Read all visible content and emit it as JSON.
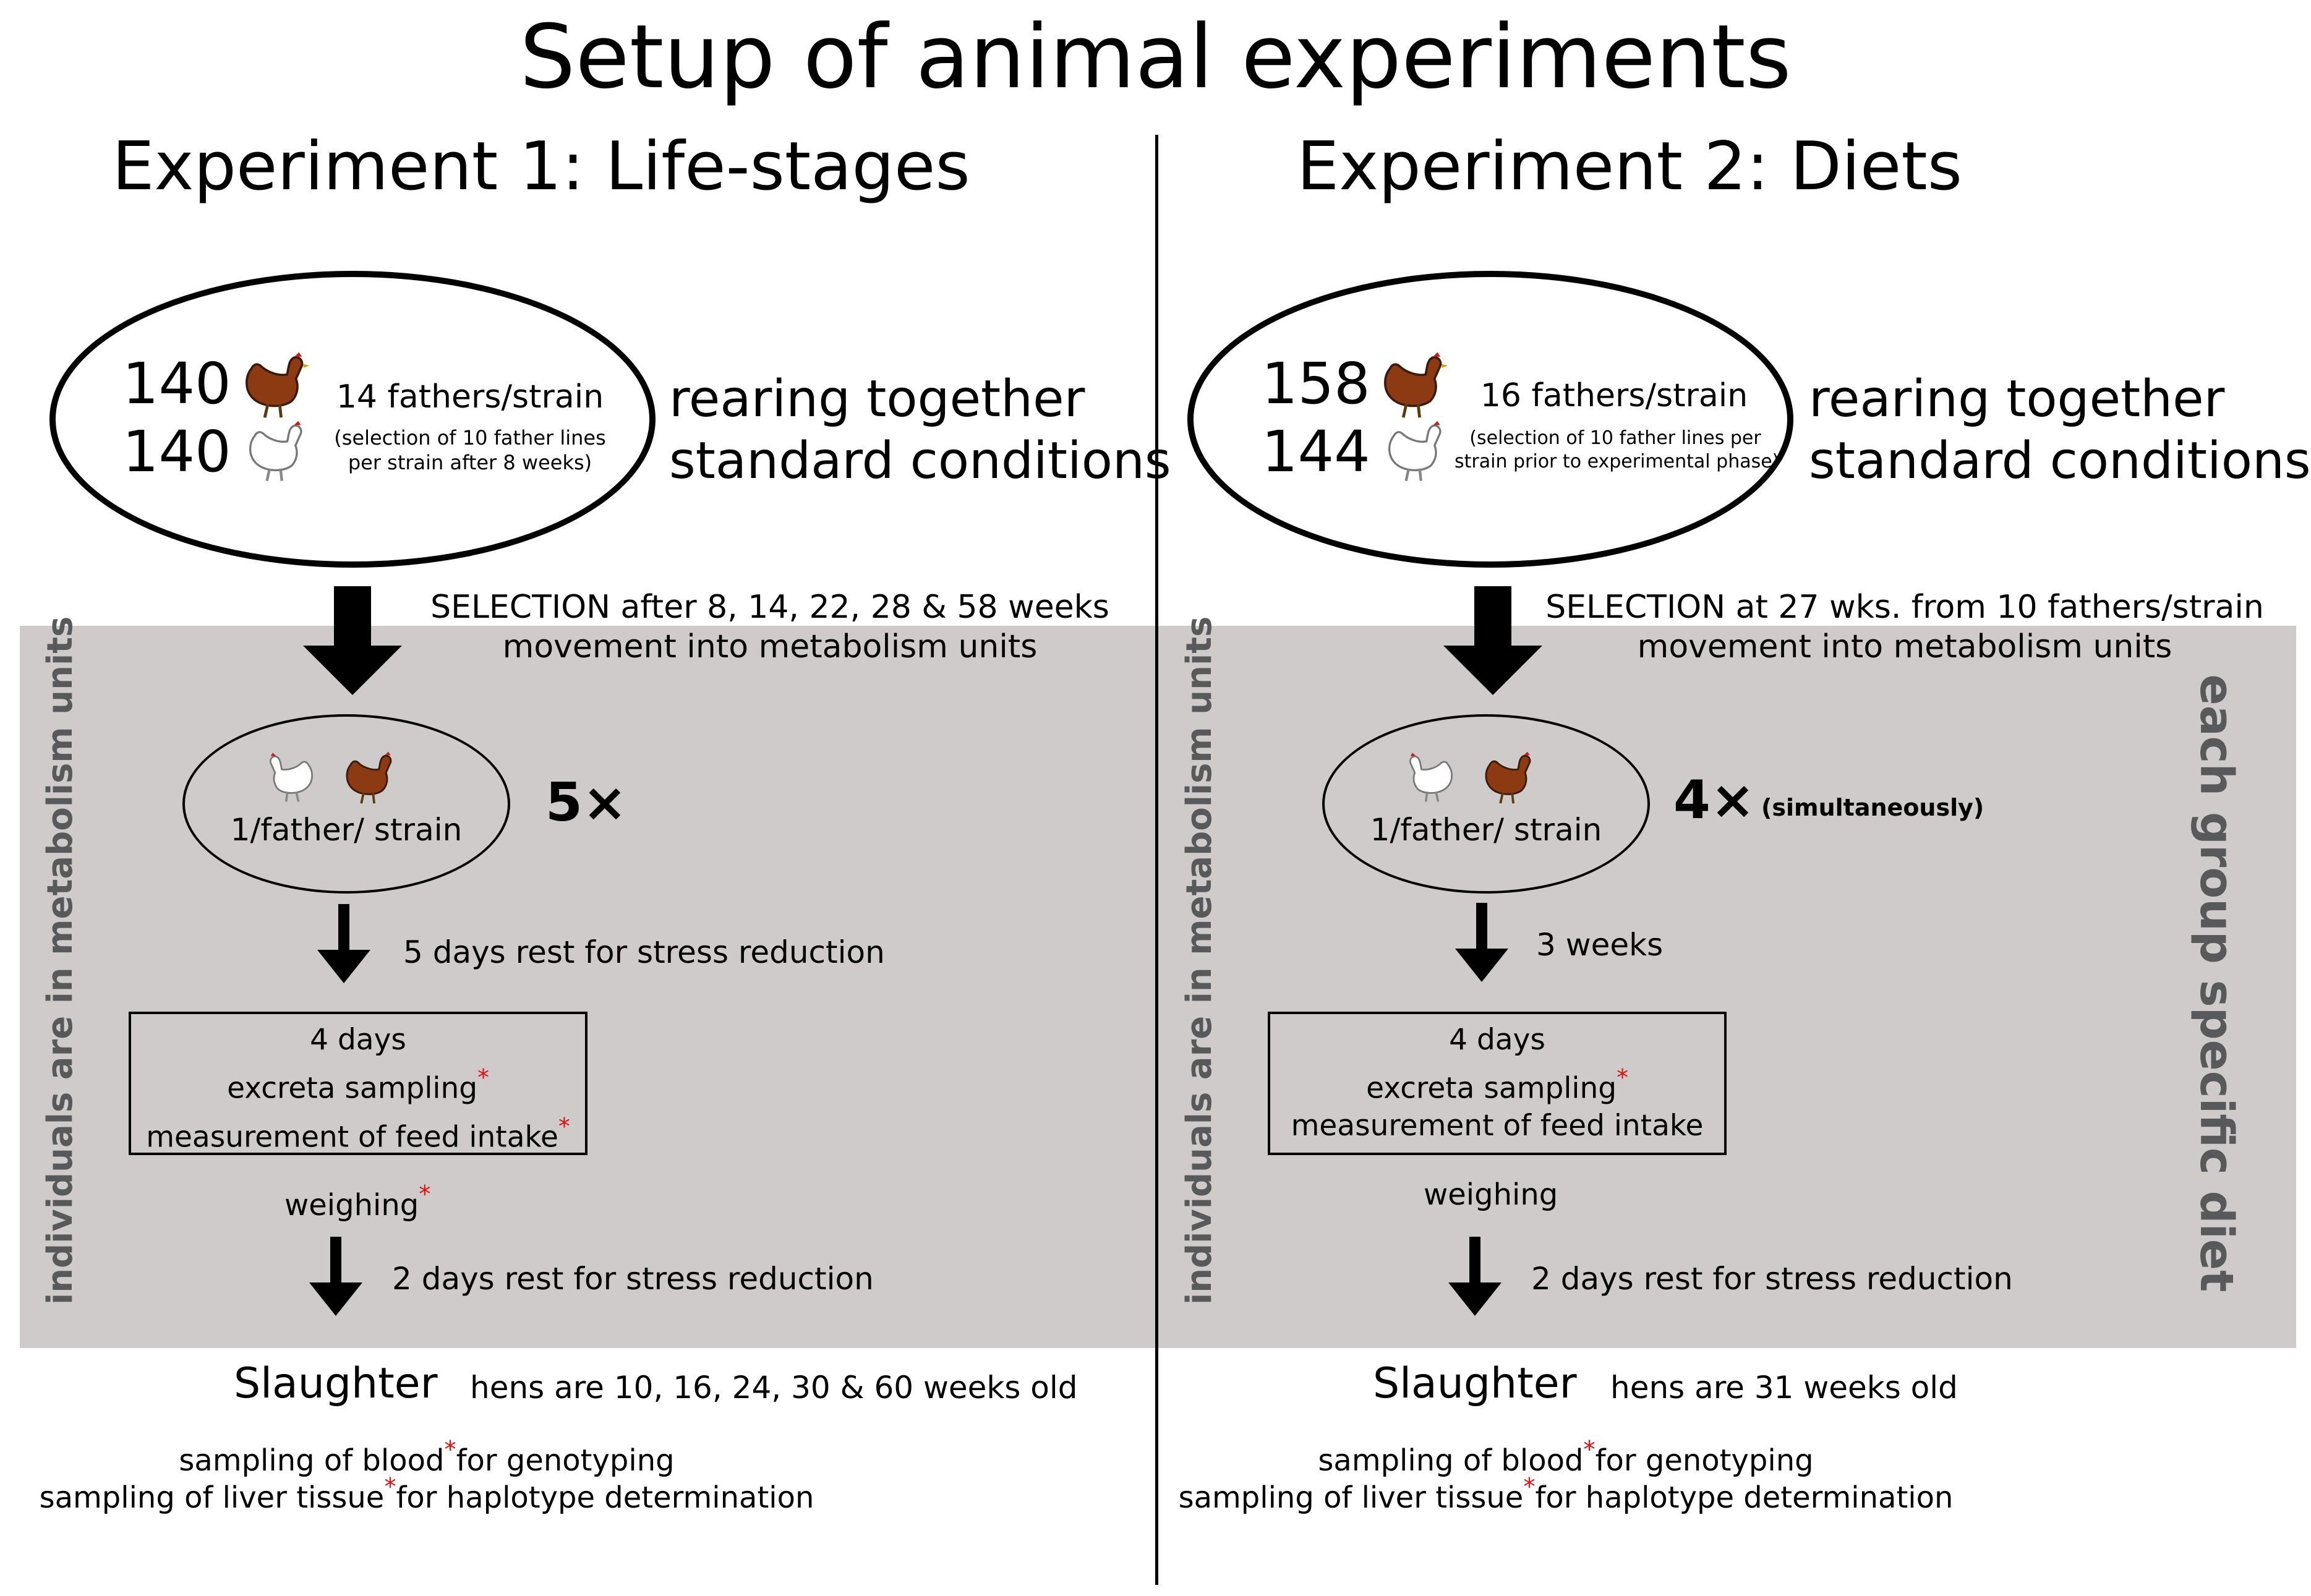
{
  "title": "Setup of animal experiments",
  "experiment1": {
    "heading": "Experiment 1: Life-stages",
    "ellipse": {
      "count_brown": "140",
      "count_white": "140",
      "fathers": "14 fathers/strain",
      "selection_note_line1": "(selection of 10 father lines",
      "selection_note_line2": "per strain after 8 weeks)"
    },
    "rearing_line1": "rearing together",
    "rearing_line2": "standard conditions",
    "selection_line1": "SELECTION after 8, 14, 22, 28 & 58 weeks",
    "selection_line2": "movement into metabolism units",
    "unit_label": "1/father/ strain",
    "multiplier": "5×",
    "rest1": "5 days rest for stress reduction",
    "box_line1": "4 days",
    "box_line2": "excreta sampling",
    "box_line3": "measurement of feed intake",
    "weighing": "weighing",
    "rest2": "2 days rest for stress reduction",
    "slaughter": "Slaughter",
    "slaughter_age": "hens are 10, 16, 24, 30 & 60 weeks old",
    "sampling1_a": "sampling of blood",
    "sampling1_b": "for genotyping",
    "sampling2_a": "sampling of liver tissue",
    "sampling2_b": "for haplotype determination",
    "side_label": "individuals are in metabolism units"
  },
  "experiment2": {
    "heading": "Experiment 2: Diets",
    "ellipse": {
      "count_brown": "158",
      "count_white": "144",
      "fathers": "16 fathers/strain",
      "selection_note_line1": "(selection of 10 father lines per",
      "selection_note_line2": "strain prior to experimental phase)"
    },
    "rearing_line1": "rearing together",
    "rearing_line2": "standard conditions",
    "selection_line1": "SELECTION at 27 wks. from 10 fathers/strain",
    "selection_line2": "movement into metabolism units",
    "unit_label": "1/father/ strain",
    "multiplier": "4×",
    "multiplier_note": "(simultaneously)",
    "rest1": "3 weeks",
    "box_line1": "4 days",
    "box_line2": "excreta sampling",
    "box_line3": "measurement of feed intake",
    "weighing": "weighing",
    "rest2": "2 days rest for stress reduction",
    "slaughter": "Slaughter",
    "slaughter_age": "hens are 31 weeks old",
    "sampling1_a": "sampling of blood",
    "sampling1_b": "for genotyping",
    "sampling2_a": "sampling of liver tissue",
    "sampling2_b": "for haplotype determination",
    "side_label": "individuals are in metabolism units",
    "right_label": "each group specific diet"
  },
  "colors": {
    "shade": "#d0cbcb",
    "asterisk": "#e01010",
    "brown_hen": "#8b3a12",
    "side_text": "#58595b"
  }
}
